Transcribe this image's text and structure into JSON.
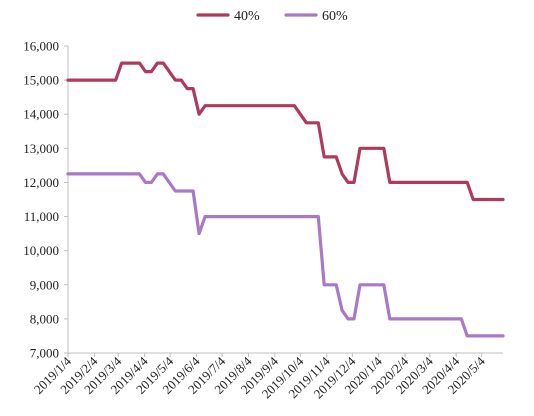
{
  "chart_data": {
    "type": "line",
    "title": "",
    "xlabel": "",
    "ylabel": "",
    "ylim": [
      7000,
      16000
    ],
    "yticks": [
      "7,000",
      "8,000",
      "9,000",
      "10,000",
      "11,000",
      "12,000",
      "13,000",
      "14,000",
      "15,000",
      "16,000"
    ],
    "yticks_values": [
      7000,
      8000,
      9000,
      10000,
      11000,
      12000,
      13000,
      14000,
      15000,
      16000
    ],
    "x_start": "2019/1/4",
    "x_end": "2020/5/29",
    "xticks": [
      "2019/1/4",
      "2019/2/4",
      "2019/3/4",
      "2019/4/4",
      "2019/5/4",
      "2019/6/4",
      "2019/7/4",
      "2019/8/4",
      "2019/9/4",
      "2019/10/4",
      "2019/11/4",
      "2019/12/4",
      "2020/1/4",
      "2020/2/4",
      "2020/3/4",
      "2020/4/4",
      "2020/5/4"
    ],
    "legend_position": "top-center",
    "series": [
      {
        "name": "40%",
        "color": "#b03a5b",
        "points": [
          [
            "2019/1/4",
            15000
          ],
          [
            "2019/3/1",
            15000
          ],
          [
            "2019/3/8",
            15500
          ],
          [
            "2019/3/29",
            15500
          ],
          [
            "2019/4/5",
            15250
          ],
          [
            "2019/4/12",
            15250
          ],
          [
            "2019/4/19",
            15500
          ],
          [
            "2019/4/26",
            15500
          ],
          [
            "2019/5/10",
            15000
          ],
          [
            "2019/5/17",
            15000
          ],
          [
            "2019/5/24",
            14750
          ],
          [
            "2019/5/31",
            14750
          ],
          [
            "2019/6/7",
            14000
          ],
          [
            "2019/6/14",
            14250
          ],
          [
            "2019/9/27",
            14250
          ],
          [
            "2019/10/11",
            13750
          ],
          [
            "2019/10/25",
            13750
          ],
          [
            "2019/11/1",
            12750
          ],
          [
            "2019/11/15",
            12750
          ],
          [
            "2019/11/22",
            12250
          ],
          [
            "2019/11/29",
            12000
          ],
          [
            "2019/12/6",
            12000
          ],
          [
            "2019/12/13",
            13000
          ],
          [
            "2020/1/10",
            13000
          ],
          [
            "2020/1/17",
            12000
          ],
          [
            "2020/4/17",
            12000
          ],
          [
            "2020/4/24",
            11500
          ],
          [
            "2020/5/29",
            11500
          ]
        ]
      },
      {
        "name": "60%",
        "color": "#a978c6",
        "points": [
          [
            "2019/1/4",
            12250
          ],
          [
            "2019/3/29",
            12250
          ],
          [
            "2019/4/5",
            12000
          ],
          [
            "2019/4/12",
            12000
          ],
          [
            "2019/4/19",
            12250
          ],
          [
            "2019/4/26",
            12250
          ],
          [
            "2019/5/10",
            11750
          ],
          [
            "2019/5/31",
            11750
          ],
          [
            "2019/6/7",
            10500
          ],
          [
            "2019/6/14",
            11000
          ],
          [
            "2019/10/25",
            11000
          ],
          [
            "2019/11/1",
            9000
          ],
          [
            "2019/11/15",
            9000
          ],
          [
            "2019/11/22",
            8250
          ],
          [
            "2019/11/29",
            8000
          ],
          [
            "2019/12/6",
            8000
          ],
          [
            "2019/12/13",
            9000
          ],
          [
            "2020/1/10",
            9000
          ],
          [
            "2020/1/17",
            8000
          ],
          [
            "2020/4/10",
            8000
          ],
          [
            "2020/4/17",
            7500
          ],
          [
            "2020/5/29",
            7500
          ]
        ]
      }
    ]
  }
}
